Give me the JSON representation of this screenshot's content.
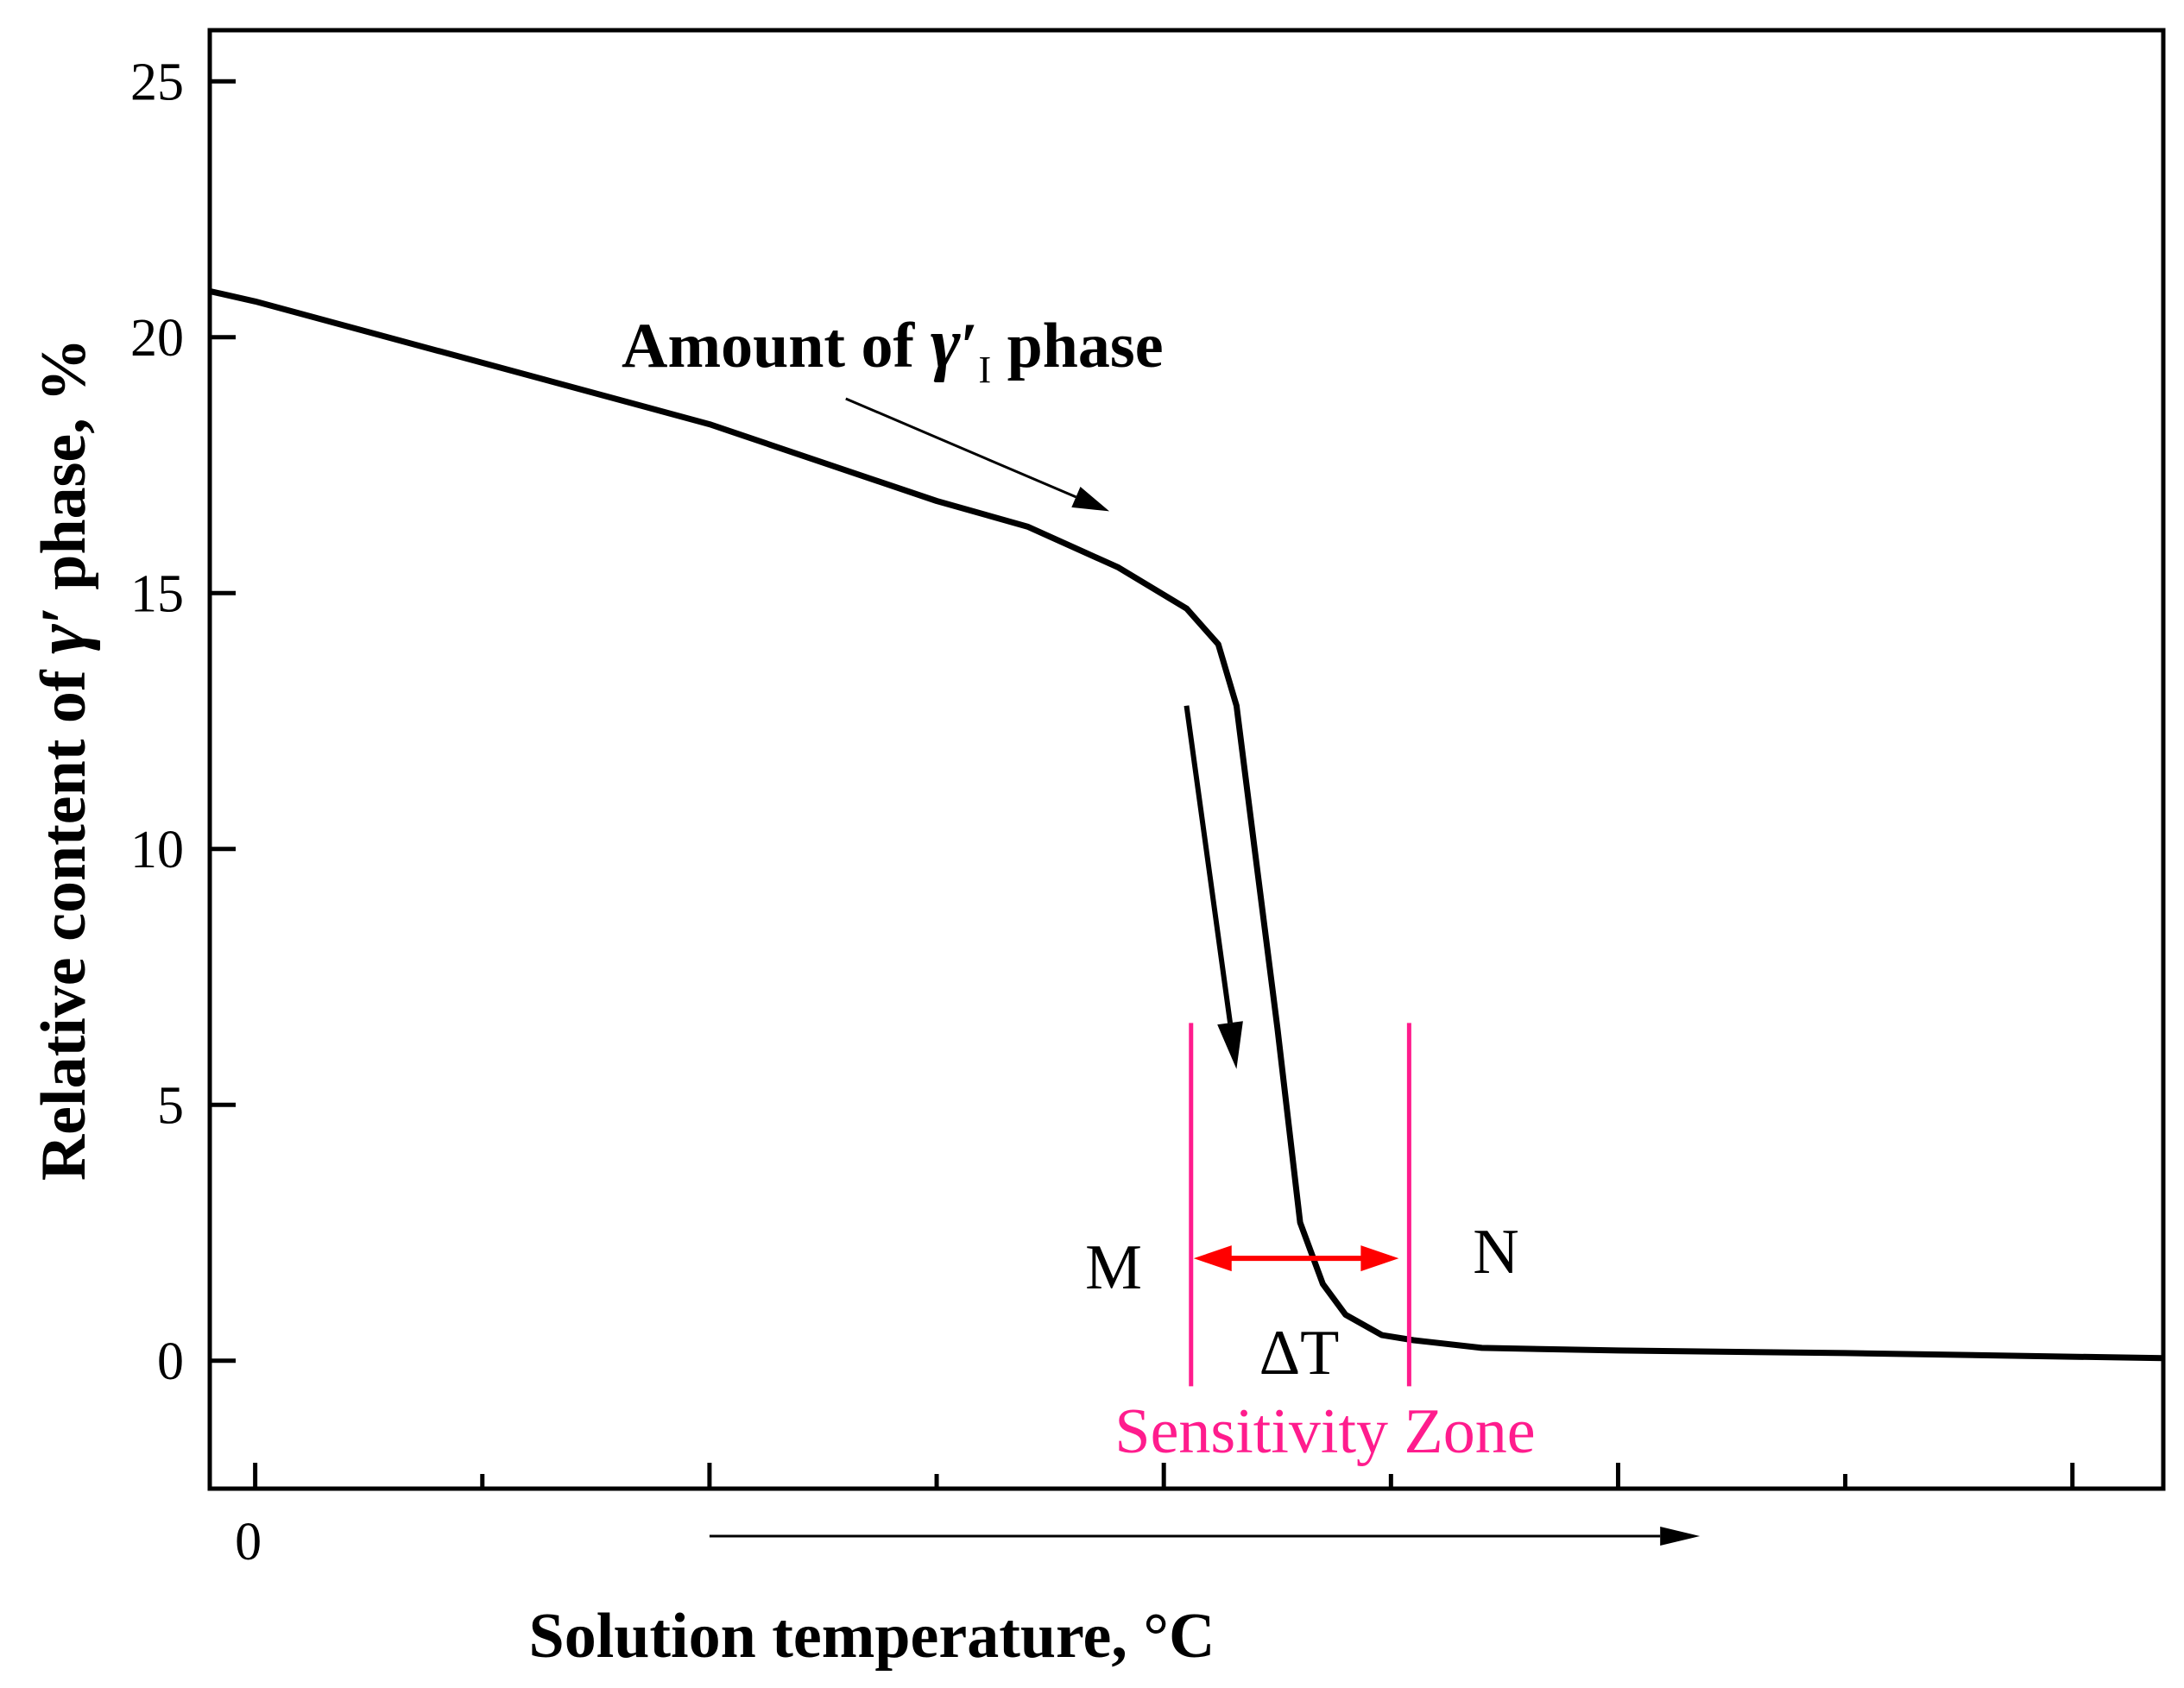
{
  "chart_data": {
    "type": "line",
    "title": "",
    "xlabel": "Solution temperature, °C",
    "ylabel_parts": {
      "pre": "Relative content of ",
      "symbol": "γ",
      "prime": "′",
      "post": " phase, %"
    },
    "xlim": [
      -0.1,
      4.2
    ],
    "ylim": [
      -2.5,
      26
    ],
    "x_major_ticks": [
      0,
      1,
      2,
      3,
      4
    ],
    "x_minor_ticks": [
      0.5,
      1.5,
      2.5,
      3.5
    ],
    "x_tick_labels": [
      {
        "x": 0,
        "label": "0"
      }
    ],
    "y_ticks": [
      0,
      5,
      10,
      15,
      20,
      25
    ],
    "y_tick_labels": [
      "0",
      "5",
      "10",
      "15",
      "20",
      "25"
    ],
    "series": [
      {
        "name": "Relative content of γ′ phase",
        "color": "#000000",
        "x": [
          -0.1,
          0.0,
          0.5,
          1.0,
          1.5,
          1.7,
          1.9,
          2.05,
          2.12,
          2.16,
          2.2,
          2.25,
          2.3,
          2.35,
          2.4,
          2.48,
          2.55,
          2.7,
          3.0,
          3.5,
          4.2
        ],
        "y": [
          20.9,
          20.7,
          19.5,
          18.3,
          16.8,
          16.3,
          15.5,
          14.7,
          14.0,
          12.8,
          10.0,
          6.5,
          2.7,
          1.5,
          0.9,
          0.5,
          0.4,
          0.25,
          0.2,
          0.15,
          0.05
        ]
      }
    ],
    "annotations": {
      "amount": {
        "pre": "Amount of ",
        "symbol": "γ",
        "prime": "′",
        "sub": "I",
        "post": " phase"
      },
      "marker_m": "M",
      "marker_n": "N",
      "delta_t": "ΔT",
      "sensitivity_zone": "Sensitivity Zone",
      "zone_bounds_x": [
        2.06,
        2.54
      ],
      "zone_line_y": [
        -0.5,
        6.6
      ],
      "delta_arrow_y": 2.0,
      "amount_arrow": {
        "from": [
          1.3,
          18.8
        ],
        "to": [
          1.88,
          16.6
        ]
      },
      "steep_arrow": {
        "from": [
          2.05,
          12.8
        ],
        "to": [
          2.16,
          5.7
        ]
      },
      "x_axis_arrow": {
        "from": [
          1.0,
          -3.5
        ],
        "to": [
          3.18,
          -3.5
        ]
      }
    },
    "colors": {
      "line": "#000000",
      "zone": "#ff1c8d",
      "delta_arrow": "#ff0000"
    }
  }
}
